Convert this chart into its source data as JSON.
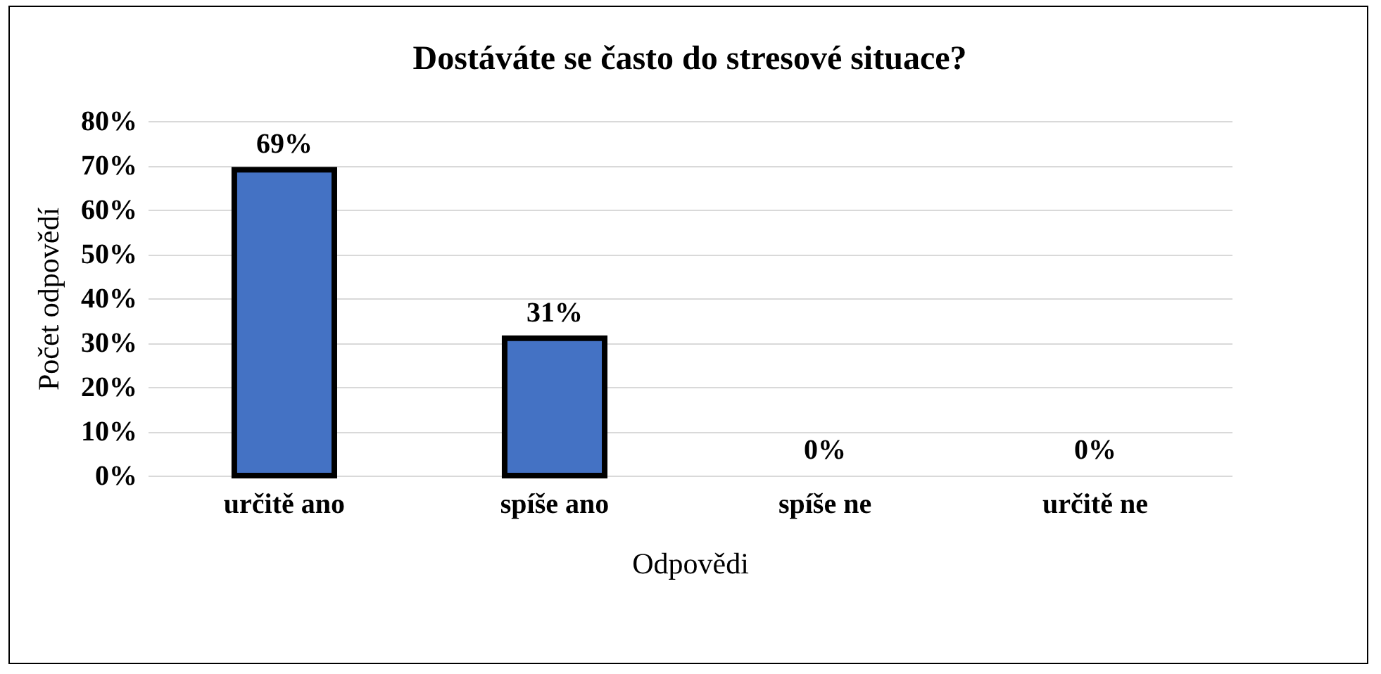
{
  "chart_data": {
    "type": "bar",
    "title": "Dostáváte se často do stresové situace?",
    "xlabel": "Odpovědi",
    "ylabel": "Počet odpovědí",
    "categories": [
      "určitě ano",
      "spíše ano",
      "spíše ne",
      "určitě ne"
    ],
    "values": [
      69,
      31,
      0,
      0
    ],
    "value_labels": [
      "69%",
      "31%",
      "0%",
      "0%"
    ],
    "color": "#4472c4",
    "ylim": [
      0,
      80
    ],
    "yticks": [
      {
        "value": 0,
        "label": "0%"
      },
      {
        "value": 10,
        "label": "10%"
      },
      {
        "value": 20,
        "label": "20%"
      },
      {
        "value": 30,
        "label": "30%"
      },
      {
        "value": 40,
        "label": "40%"
      },
      {
        "value": 50,
        "label": "50%"
      },
      {
        "value": 60,
        "label": "60%"
      },
      {
        "value": 70,
        "label": "70%"
      },
      {
        "value": 80,
        "label": "80%"
      }
    ],
    "grid": true
  }
}
